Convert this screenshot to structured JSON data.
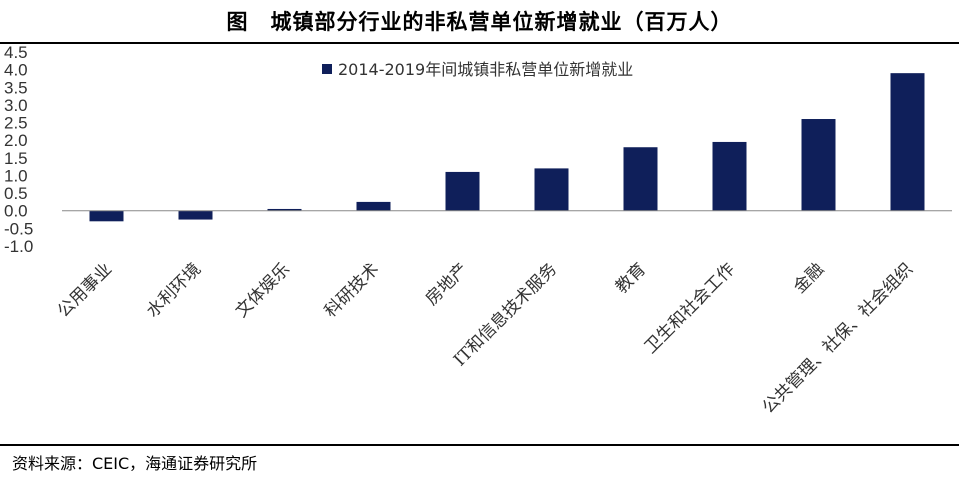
{
  "page_title": "图　城镇部分行业的非私营单位新增就业（百万人）",
  "source_note": "资料来源：CEIC，海通证券研究所",
  "colors": {
    "bar": "#0f1f5a",
    "axis": "#888888",
    "text": "#333333"
  },
  "chart_data": {
    "type": "bar",
    "categories": [
      "公用事业",
      "水利环境",
      "文体娱乐",
      "科研技术",
      "房地产",
      "IT和信息技术服务",
      "教育",
      "卫生和社会工作",
      "金融",
      "公共管理、社保、社会组织"
    ],
    "series": [
      {
        "name": "2014-2019年间城镇非私营单位新增就业",
        "values": [
          -0.3,
          -0.25,
          0.05,
          0.25,
          1.1,
          1.2,
          1.8,
          1.95,
          2.6,
          3.9
        ]
      }
    ],
    "yticks": [
      "4.5",
      "4.0",
      "3.5",
      "3.0",
      "2.5",
      "2.0",
      "1.5",
      "1.0",
      "0.5",
      "0.0",
      "-0.5",
      "-1.0"
    ],
    "ylim": [
      -1.0,
      4.5
    ],
    "legend_position": "top-center",
    "grid": false
  }
}
